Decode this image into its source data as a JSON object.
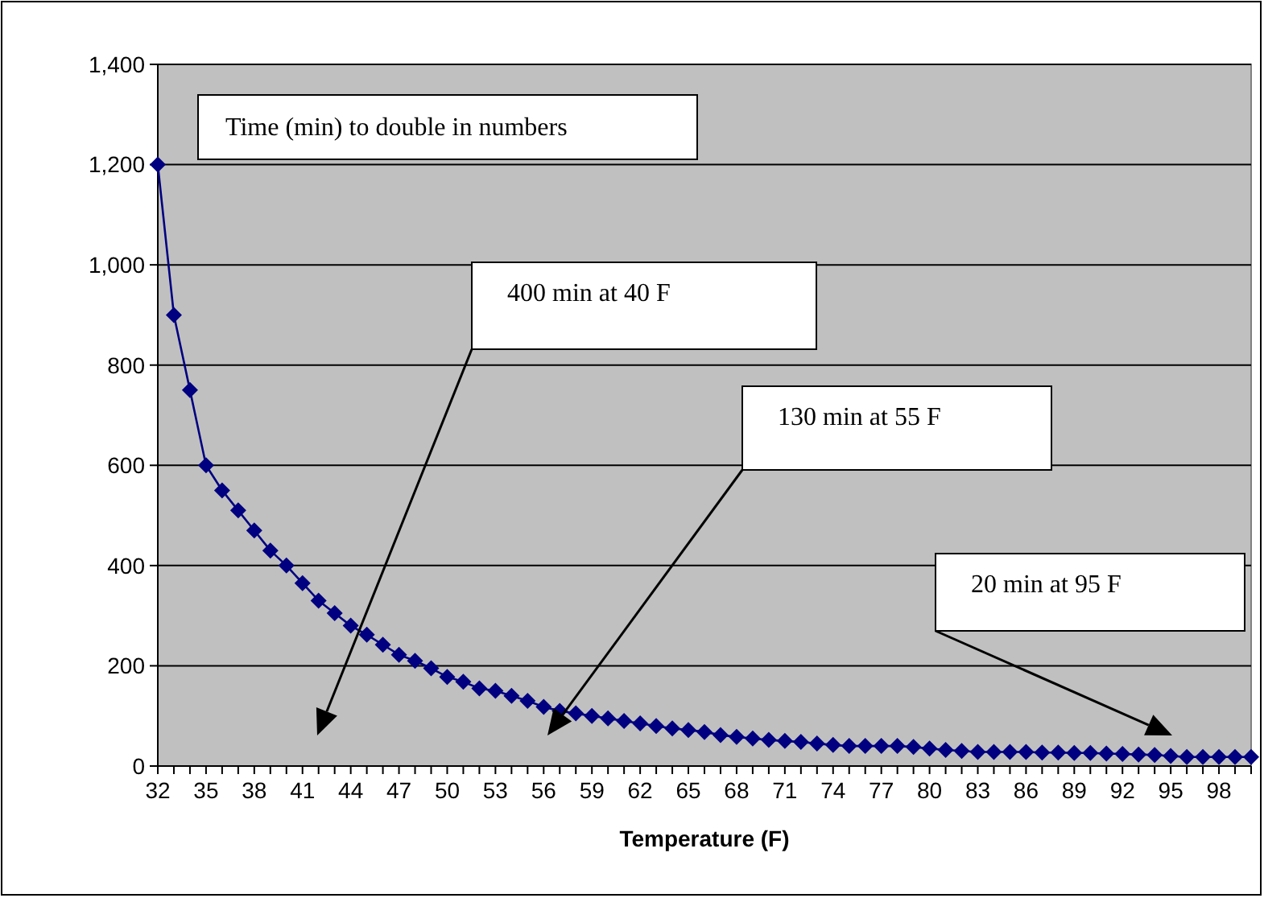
{
  "chart_data": {
    "type": "line",
    "title": "Time (min) to double in numbers",
    "xlabel": "Temperature (F)",
    "categories": [
      "32",
      null,
      null,
      "35",
      null,
      null,
      "38",
      null,
      null,
      "41",
      null,
      null,
      "44",
      null,
      null,
      "47",
      null,
      null,
      "50",
      null,
      null,
      "53",
      null,
      null,
      "56",
      null,
      null,
      "59",
      null,
      null,
      "62",
      null,
      null,
      "65",
      null,
      null,
      "68",
      null,
      null,
      "71",
      null,
      null,
      "74",
      null,
      null,
      "77",
      null,
      null,
      "80",
      null,
      null,
      "83",
      null,
      null,
      "86",
      null,
      null,
      "89",
      null,
      null,
      "92",
      null,
      null,
      "95",
      null,
      null,
      "98",
      null,
      null
    ],
    "series": [
      {
        "color": "#000080",
        "values": [
          1200,
          900,
          750,
          600,
          550,
          510,
          470,
          430,
          400,
          365,
          330,
          305,
          280,
          262,
          242,
          222,
          210,
          195,
          178,
          168,
          155,
          150,
          140,
          130,
          118,
          110,
          105,
          100,
          95,
          90,
          85,
          80,
          75,
          72,
          68,
          62,
          58,
          55,
          52,
          50,
          48,
          45,
          42,
          40,
          40,
          40,
          40,
          38,
          35,
          32,
          30,
          28,
          28,
          28,
          28,
          27,
          27,
          26,
          26,
          25,
          24,
          23,
          22,
          20,
          18,
          18,
          18,
          18,
          18
        ]
      }
    ],
    "ylim": [
      0,
      1400
    ],
    "yticks": [
      0,
      200,
      400,
      600,
      800,
      {
        "value": 1000,
        "label": "1,000"
      },
      {
        "value": 1200,
        "label": "1,200"
      },
      {
        "value": 1400,
        "label": "1,400"
      }
    ],
    "grid": "y",
    "marker": "diamond",
    "line_style": "solid",
    "annotations": [
      "400 min at 40 F",
      "130 min at 55 F",
      "20 min at 95 F"
    ]
  }
}
